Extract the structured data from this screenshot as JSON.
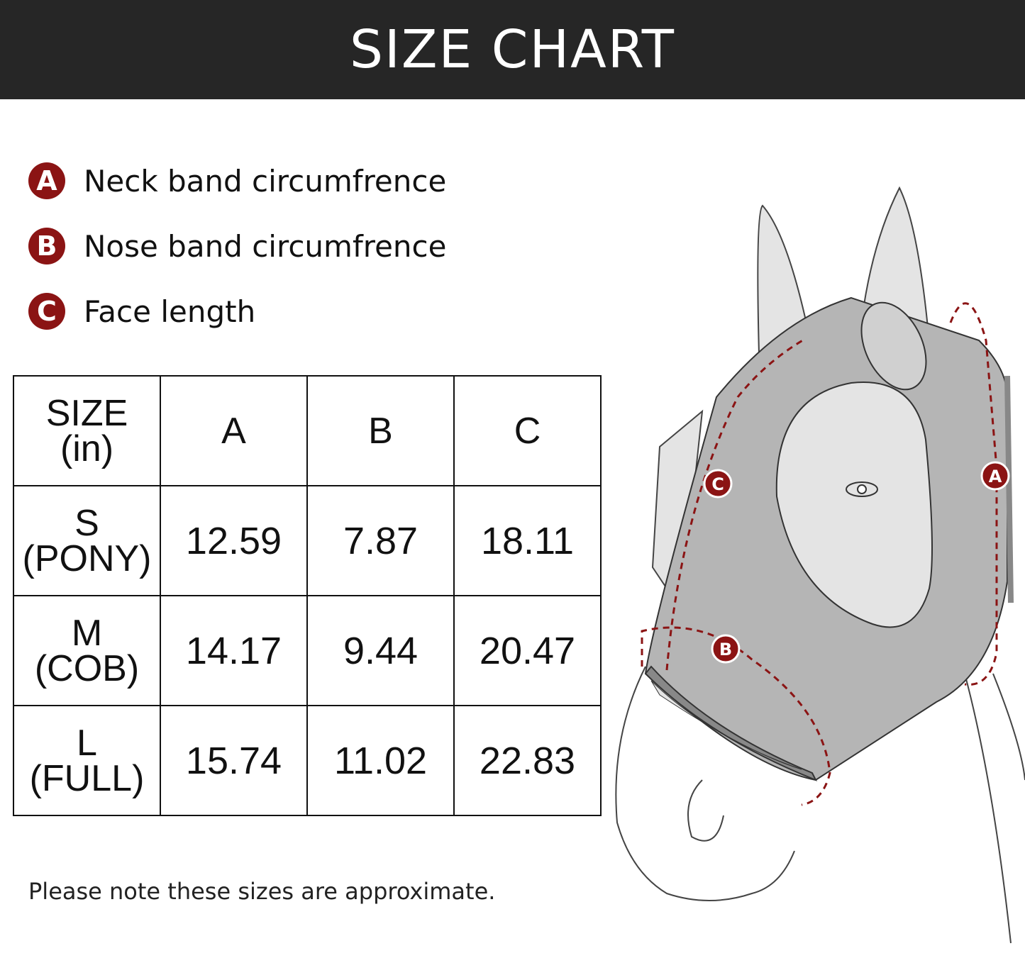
{
  "header": {
    "title": "SIZE CHART"
  },
  "legend": [
    {
      "letter": "A",
      "label": "Neck band circumfrence"
    },
    {
      "letter": "B",
      "label": "Nose band circumfrence"
    },
    {
      "letter": "C",
      "label": "Face length"
    }
  ],
  "table": {
    "headers": {
      "size_line1": "SIZE",
      "size_line2": "(in)",
      "a": "A",
      "b": "B",
      "c": "C"
    },
    "rows": [
      {
        "size": "S",
        "name": "(PONY)",
        "a": "12.59",
        "b": "7.87",
        "c": "18.11"
      },
      {
        "size": "M",
        "name": "(COB)",
        "a": "14.17",
        "b": "9.44",
        "c": "20.47"
      },
      {
        "size": "L",
        "name": "(FULL)",
        "a": "15.74",
        "b": "11.02",
        "c": "22.83"
      }
    ]
  },
  "note": "Please note these sizes are approximate.",
  "illustration": {
    "markers": [
      "A",
      "B",
      "C"
    ]
  },
  "colors": {
    "header_bg": "#262626",
    "accent": "#8b1414",
    "mask": "#b5b5b5"
  }
}
